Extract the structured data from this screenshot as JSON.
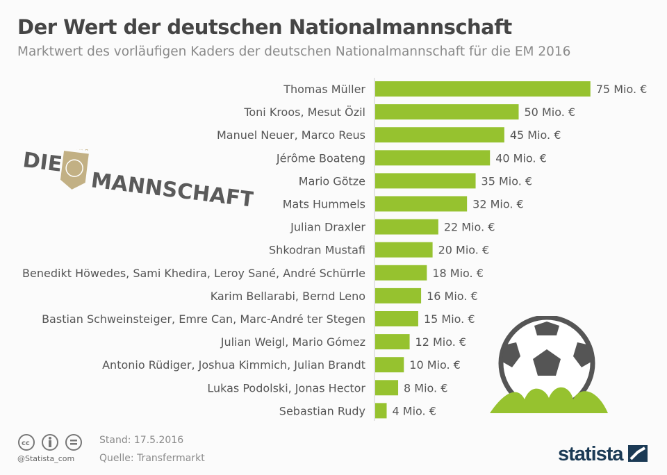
{
  "header": {
    "title": "Der Wert der deutschen Nationalmannschaft",
    "subtitle": "Marktwert des vorläufigen Kaders der deutschen Nationalmannschaft für die EM 2016"
  },
  "logo": {
    "text_left": "DIE",
    "text_right": "MANNSCHAFT",
    "stars": 4,
    "color_text": "#5a5a5a",
    "color_badge": "#c2b084"
  },
  "chart_data": {
    "type": "bar",
    "orientation": "horizontal",
    "bar_color": "#96c22f",
    "categories": [
      "Thomas Müller",
      "Toni Kroos, Mesut Özil",
      "Manuel Neuer, Marco Reus",
      "Jérôme Boateng",
      "Mario Götze",
      "Mats Hummels",
      "Julian Draxler",
      "Shkodran Mustafi",
      "Benedikt Höwedes, Sami Khedira, Leroy Sané, André Schürrle",
      "Karim Bellarabi, Bernd Leno",
      "Bastian Schweinsteiger, Emre Can, Marc-André ter Stegen",
      "Julian Weigl, Mario Gómez",
      "Antonio Rüdiger, Joshua Kimmich, Julian Brandt",
      "Lukas Podolski, Jonas Hector",
      "Sebastian Rudy"
    ],
    "values": [
      75,
      50,
      45,
      40,
      35,
      32,
      22,
      20,
      18,
      16,
      15,
      12,
      10,
      8,
      4
    ],
    "value_labels": [
      "75 Mio. €",
      "50 Mio. €",
      "45 Mio. €",
      "40 Mio. €",
      "35 Mio. €",
      "32 Mio. €",
      "22 Mio. €",
      "20 Mio. €",
      "18 Mio. €",
      "16 Mio. €",
      "15 Mio. €",
      "12 Mio. €",
      "10 Mio. €",
      "8 Mio. €",
      "4 Mio. €"
    ],
    "unit": "Mio. €",
    "grid": false
  },
  "footer": {
    "date": "Stand: 17.5.2016",
    "source": "Quelle: Transfermarkt",
    "handle": "@Statista_com",
    "brand": "statista",
    "license_icons": [
      "cc-icon",
      "by-icon",
      "nd-icon"
    ]
  }
}
